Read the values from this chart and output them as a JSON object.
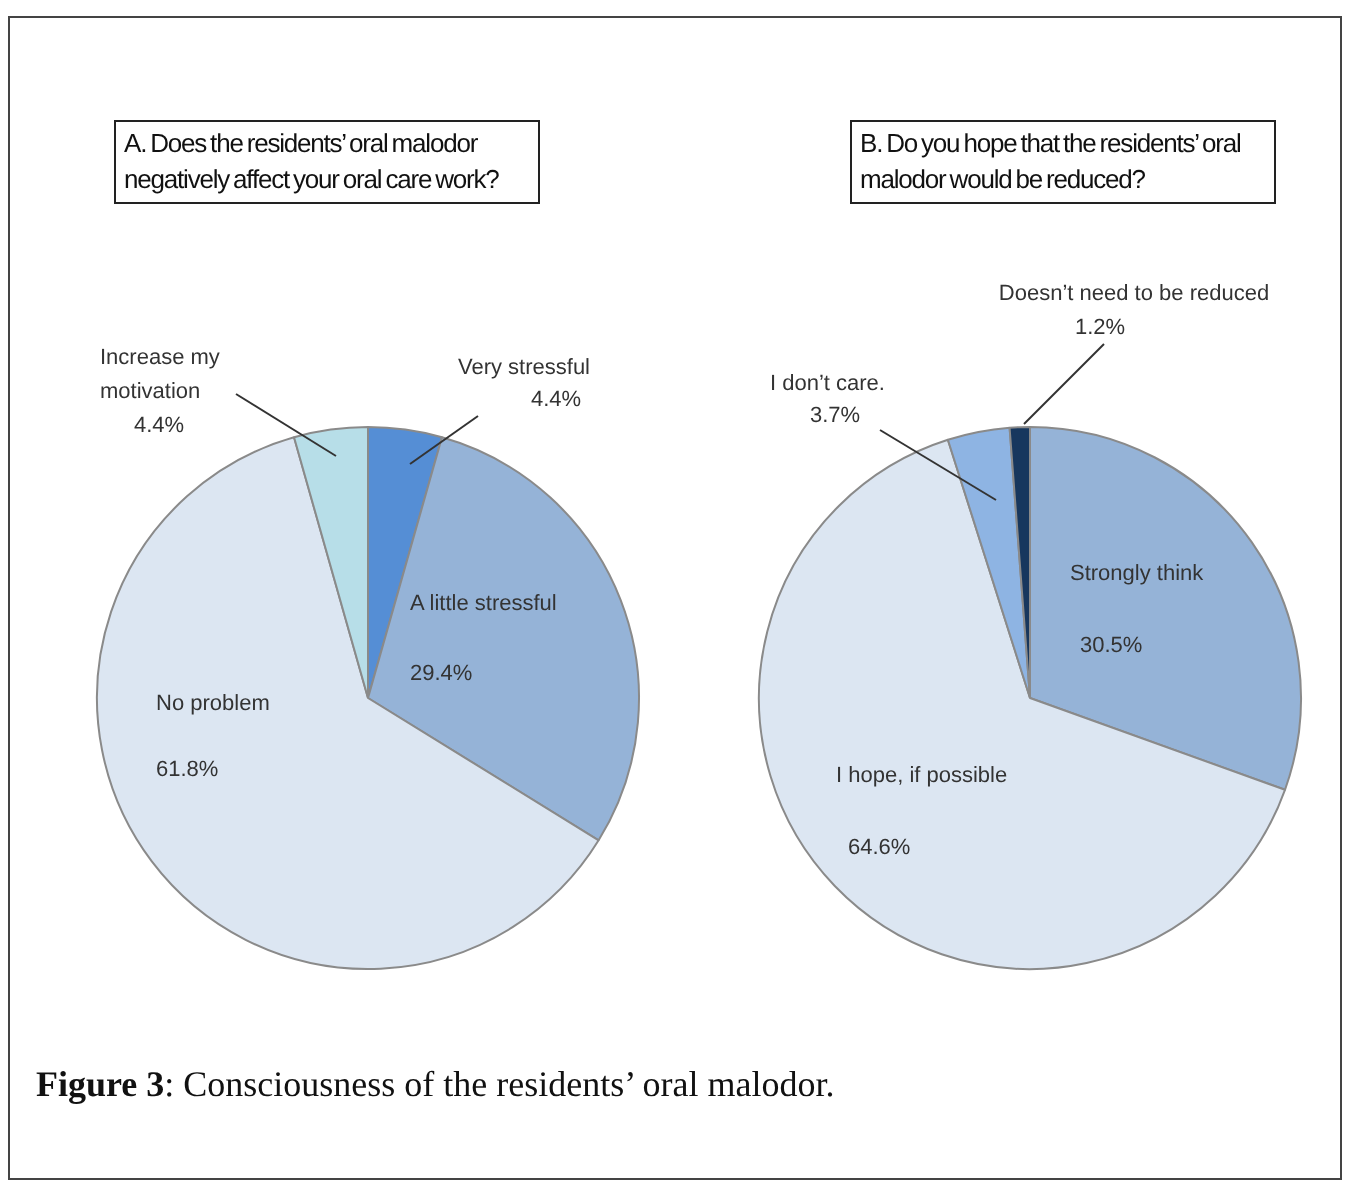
{
  "chart_data": [
    {
      "type": "pie",
      "title": "A. Does the residents’ oral malodor negatively affect your oral care work?",
      "categories": [
        "Very stressful",
        "A little stressful",
        "No problem",
        "Increase my motivation"
      ],
      "values": [
        4.4,
        29.4,
        61.8,
        4.4
      ],
      "value_labels": [
        "4.4%",
        "29.4%",
        "61.8%",
        "4.4%"
      ],
      "colors": [
        "#558ed5",
        "#95b3d7",
        "#dce6f2",
        "#b7dee8"
      ],
      "legend": false,
      "annotations": [
        "Figure 3: Consciousness of the residents’ oral malodor."
      ]
    },
    {
      "type": "pie",
      "title": "B. Do you hope that the residents’ oral malodor would be reduced?",
      "categories": [
        "Strongly think",
        "I hope, if possible",
        "I don’t care.",
        "Doesn’t need to be reduced"
      ],
      "values": [
        30.5,
        64.6,
        3.7,
        1.2
      ],
      "value_labels": [
        "30.5%",
        "64.6%",
        "3.7%",
        "1.2%"
      ],
      "colors": [
        "#95b3d7",
        "#dce6f2",
        "#8eb4e3",
        "#17375e"
      ],
      "legend": false
    }
  ]
}
